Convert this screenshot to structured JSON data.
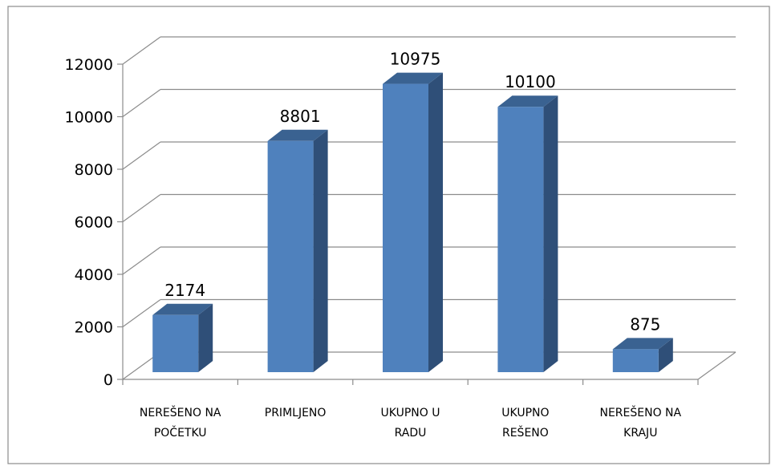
{
  "chart_data": {
    "type": "bar",
    "style": "3d-column",
    "categories": [
      [
        "NEREŠENO NA",
        "POČETKU"
      ],
      [
        "PRIMLJENO"
      ],
      [
        "UKUPNO U",
        "RADU"
      ],
      [
        "UKUPNO",
        "REŠENO"
      ],
      [
        "NEREŠENO NA",
        "KRAJU"
      ]
    ],
    "values": [
      2174,
      8801,
      10975,
      10100,
      875
    ],
    "data_labels": [
      "2174",
      "8801",
      "10975",
      "10100",
      "875"
    ],
    "ylim": [
      0,
      12000
    ],
    "yticks": [
      "0",
      "2000",
      "4000",
      "6000",
      "8000",
      "10000",
      "12000"
    ],
    "grid": true,
    "legend": "none",
    "colors": {
      "bar_front": "#4f81bd",
      "bar_side": "#2f4f78",
      "bar_top": "#3a6291",
      "grid": "#8c8c8c",
      "border": "#8c8c8c"
    }
  }
}
